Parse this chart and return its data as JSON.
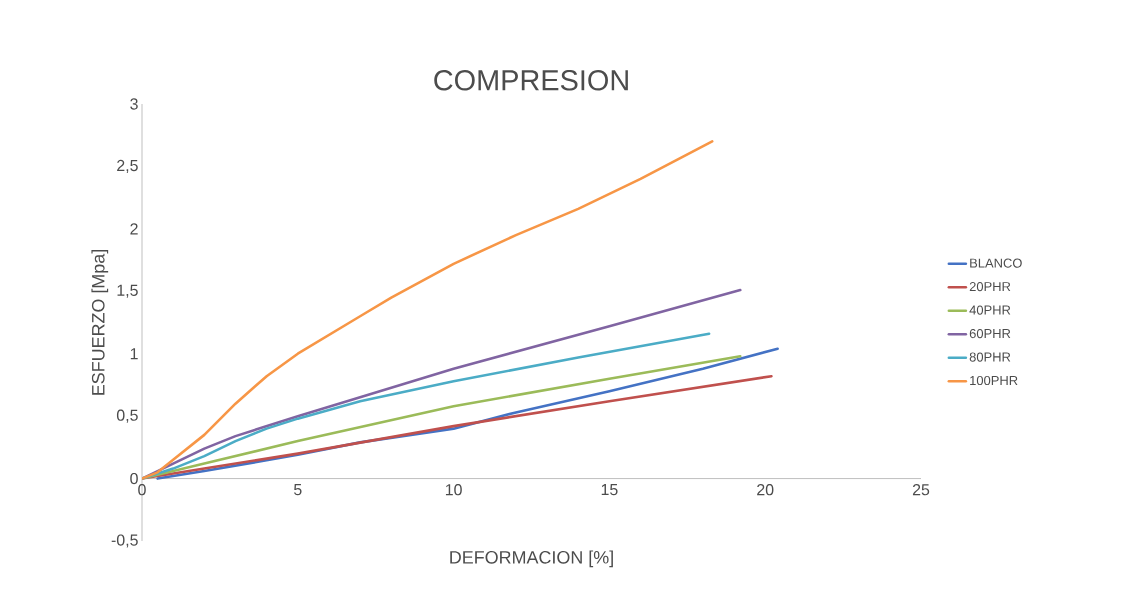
{
  "chart_data": {
    "type": "line",
    "title": "COMPRESION",
    "xlabel": "DEFORMACION [%]",
    "ylabel": "ESFUERZO [Mpa]",
    "xlim": [
      0,
      25
    ],
    "ylim": [
      -0.5,
      3
    ],
    "xticks": [
      0,
      5,
      10,
      15,
      20,
      25
    ],
    "yticks": [
      {
        "value": -0.5,
        "label": "-0,5"
      },
      0,
      {
        "value": 0.5,
        "label": "0,5"
      },
      1,
      {
        "value": 1.5,
        "label": "1,5"
      },
      2,
      {
        "value": 2.5,
        "label": "2,5"
      },
      3
    ],
    "grid": false,
    "legend": "right",
    "marker": "none",
    "line_style": "solid",
    "series": [
      {
        "name": "BLANCO",
        "color": "#4472c4",
        "x": [
          0.5,
          2,
          5,
          7,
          10,
          12,
          15,
          18,
          20.4
        ],
        "values": [
          0,
          0.06,
          0.19,
          0.29,
          0.4,
          0.53,
          0.7,
          0.88,
          1.04
        ]
      },
      {
        "name": "20PHR",
        "color": "#c0504d",
        "x": [
          0,
          2,
          5,
          10,
          15,
          20.2
        ],
        "values": [
          0,
          0.08,
          0.2,
          0.42,
          0.62,
          0.82
        ]
      },
      {
        "name": "40PHR",
        "color": "#9bbb59",
        "x": [
          0,
          2,
          5,
          10,
          15,
          19.2
        ],
        "values": [
          0,
          0.12,
          0.3,
          0.58,
          0.8,
          0.98
        ]
      },
      {
        "name": "60PHR",
        "color": "#8064a2",
        "x": [
          0,
          1,
          2,
          3,
          5,
          10,
          15,
          19.2
        ],
        "values": [
          0,
          0.12,
          0.24,
          0.34,
          0.5,
          0.88,
          1.22,
          1.51
        ]
      },
      {
        "name": "80PHR",
        "color": "#4bacc6",
        "x": [
          0,
          1,
          2,
          3,
          4,
          5,
          7,
          10,
          14,
          18.2
        ],
        "values": [
          0,
          0.08,
          0.18,
          0.3,
          0.4,
          0.48,
          0.62,
          0.78,
          0.97,
          1.16
        ]
      },
      {
        "name": "100PHR",
        "color": "#f79646",
        "x": [
          0,
          0.5,
          1,
          2,
          3,
          4,
          5,
          7,
          8,
          10,
          12,
          14,
          16,
          18.3
        ],
        "values": [
          0,
          0.05,
          0.15,
          0.35,
          0.6,
          0.82,
          1.0,
          1.3,
          1.45,
          1.72,
          1.95,
          2.16,
          2.4,
          2.7
        ]
      }
    ]
  }
}
